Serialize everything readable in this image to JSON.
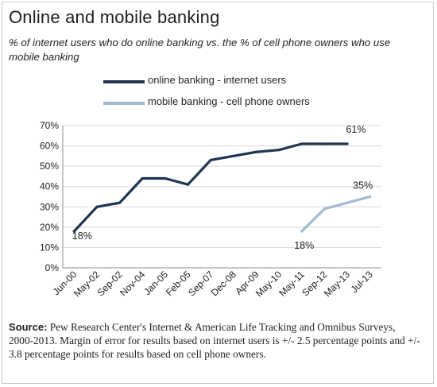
{
  "header": {
    "title": "Online and mobile banking",
    "subtitle": "% of internet users who do online banking vs. the % of cell phone owners who use mobile banking"
  },
  "source": {
    "label": "Source:",
    "text": " Pew Research Center's Internet & American Life Tracking and Omnibus Surveys, 2000-2013.  Margin of error for results based on internet users is +/- 2.5 percentage points and +/- 3.8 percentage points for results based on cell phone owners."
  },
  "chart_data": {
    "type": "line",
    "title": "Online and mobile banking",
    "xlabel": "",
    "ylabel": "",
    "ylim": [
      0,
      70
    ],
    "yticks": [
      0,
      10,
      20,
      30,
      40,
      50,
      60,
      70
    ],
    "ytick_labels": [
      "0%",
      "10%",
      "20%",
      "30%",
      "40%",
      "50%",
      "60%",
      "70%"
    ],
    "categories": [
      "Jun-00",
      "May-02",
      "Sep-02",
      "Nov-04",
      "Jan-05",
      "Feb-05",
      "Sep-07",
      "Dec-08",
      "Apr-09",
      "May-10",
      "May-11",
      "Sep-12",
      "May-13",
      "Jul-13"
    ],
    "grid": "horizontal",
    "legend_position": "top",
    "series": [
      {
        "name": "online banking - internet users",
        "color": "#1f3550",
        "values": [
          18,
          30,
          32,
          44,
          44,
          41,
          53,
          55,
          57,
          58,
          61,
          61,
          61,
          null
        ]
      },
      {
        "name": "mobile banking - cell phone owners",
        "color": "#a3b8d4",
        "values": [
          null,
          null,
          null,
          null,
          null,
          null,
          null,
          null,
          null,
          null,
          18,
          29,
          32,
          35
        ]
      }
    ],
    "annotations": [
      {
        "series": 0,
        "index": 0,
        "text": "18%"
      },
      {
        "series": 0,
        "index": 12,
        "text": "61%"
      },
      {
        "series": 1,
        "index": 10,
        "text": "18%"
      },
      {
        "series": 1,
        "index": 13,
        "text": "35%"
      }
    ]
  }
}
